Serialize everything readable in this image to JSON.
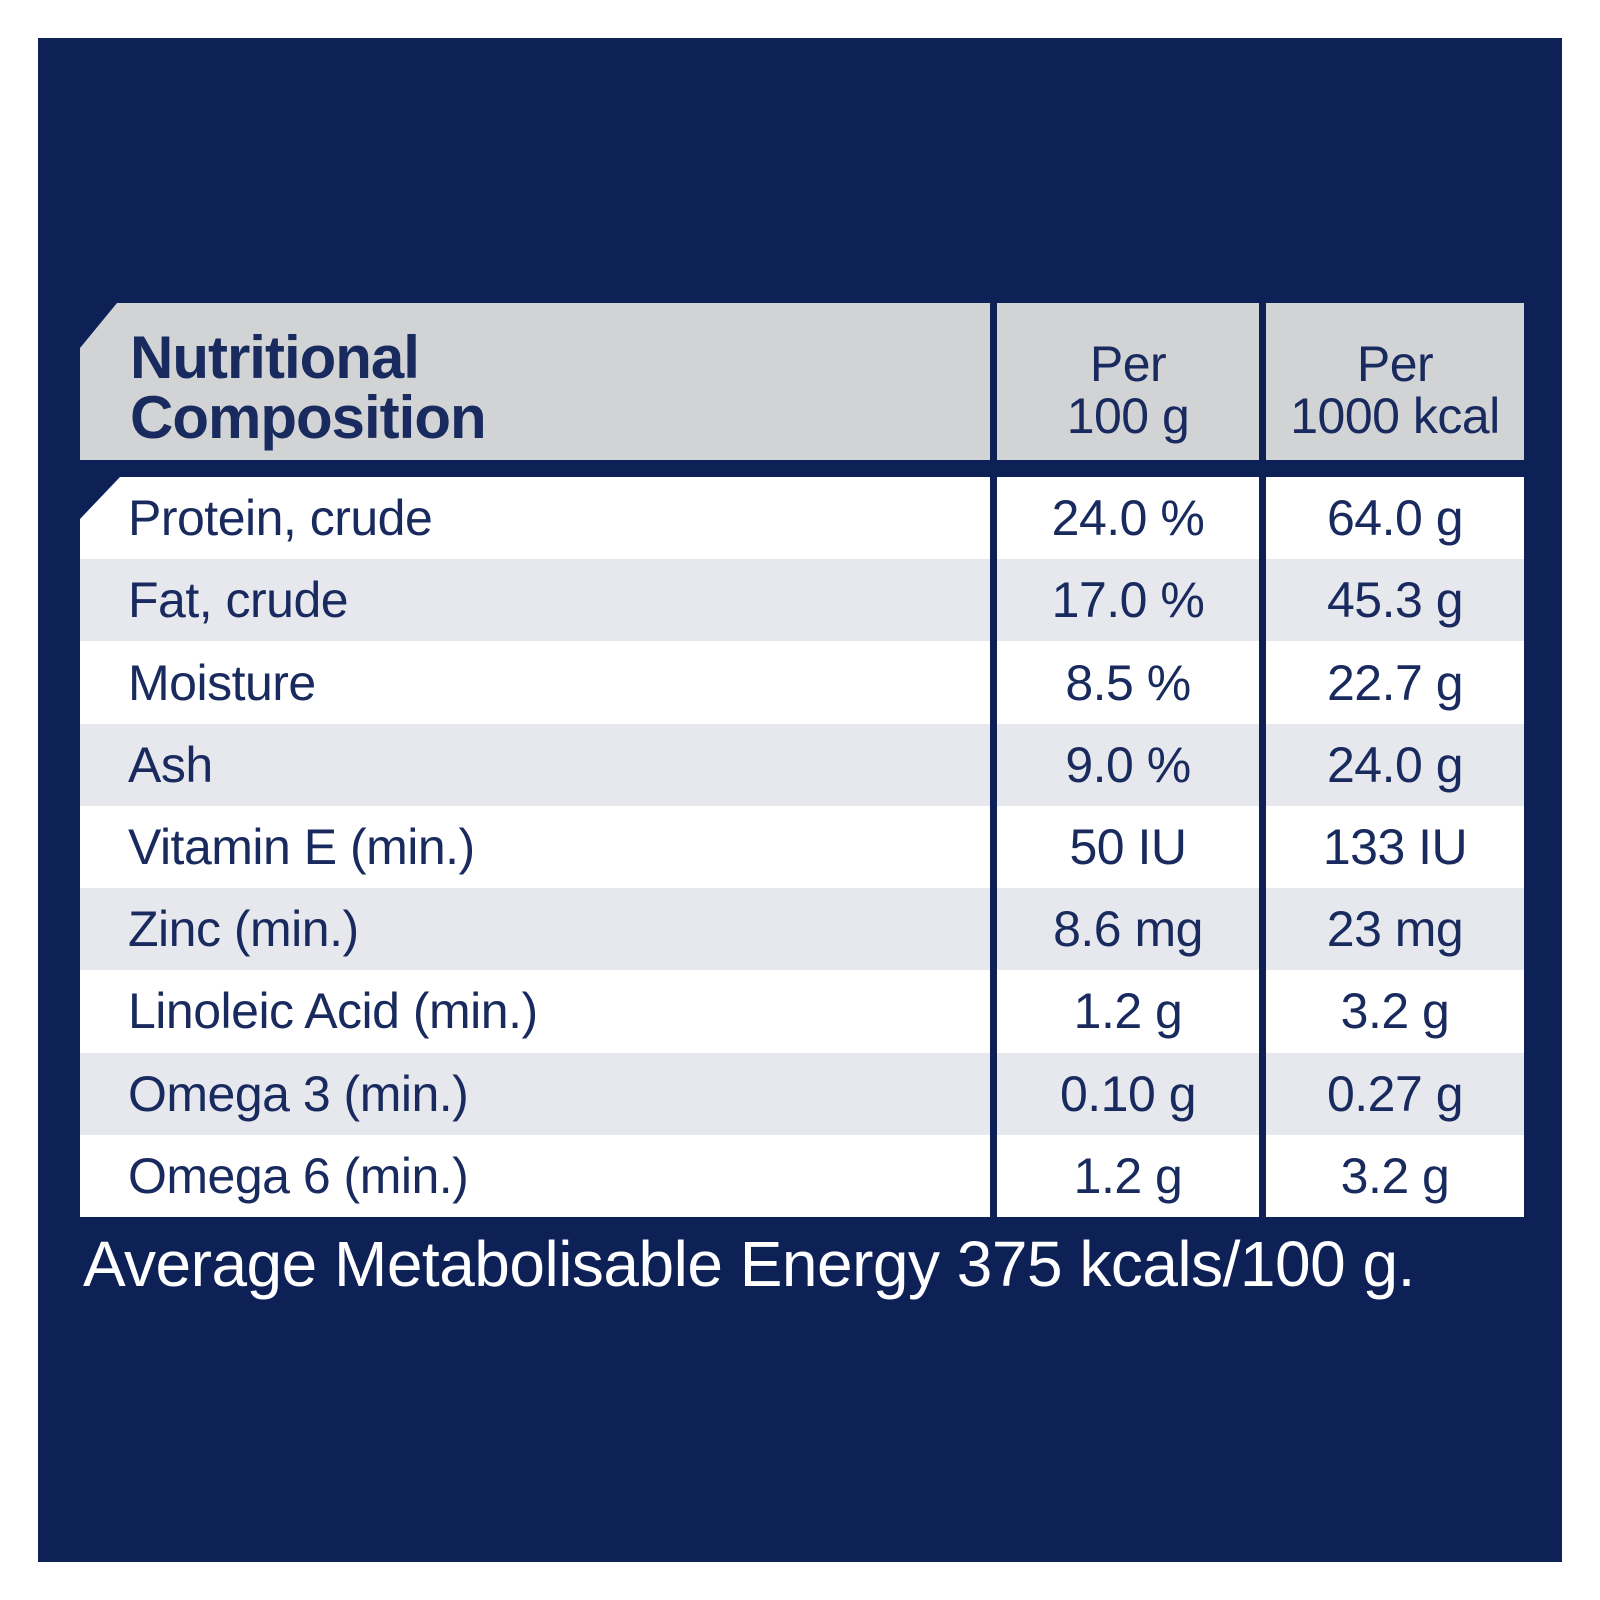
{
  "colors": {
    "navy": "#0d2156",
    "text-navy": "#182a5e",
    "header-gray": "#d2d3d5",
    "row-alt": "#e7e8ed",
    "white": "#ffffff"
  },
  "table": {
    "title": [
      "Nutritional",
      "Composition"
    ],
    "columns": [
      {
        "line1": "Per",
        "line2": "100 g"
      },
      {
        "line1": "Per",
        "line2": "1000 kcal"
      }
    ],
    "rows": [
      {
        "label": "Protein, crude",
        "per_100g": "24.0 %",
        "per_1000kcal": "64.0 g"
      },
      {
        "label": "Fat, crude",
        "per_100g": "17.0 %",
        "per_1000kcal": "45.3 g"
      },
      {
        "label": "Moisture",
        "per_100g": "8.5 %",
        "per_1000kcal": "22.7 g"
      },
      {
        "label": "Ash",
        "per_100g": "9.0 %",
        "per_1000kcal": "24.0 g"
      },
      {
        "label": "Vitamin E (min.)",
        "per_100g": "50 IU",
        "per_1000kcal": "133 IU"
      },
      {
        "label": "Zinc (min.)",
        "per_100g": "8.6 mg",
        "per_1000kcal": "23 mg"
      },
      {
        "label": "Linoleic Acid (min.)",
        "per_100g": "1.2 g",
        "per_1000kcal": "3.2 g"
      },
      {
        "label": "Omega 3 (min.)",
        "per_100g": "0.10 g",
        "per_1000kcal": "0.27 g"
      },
      {
        "label": "Omega 6 (min.)",
        "per_100g": "1.2 g",
        "per_1000kcal": "3.2 g"
      }
    ]
  },
  "footer": {
    "energy_note": "Average Metabolisable Energy 375 kcals/100 g."
  }
}
